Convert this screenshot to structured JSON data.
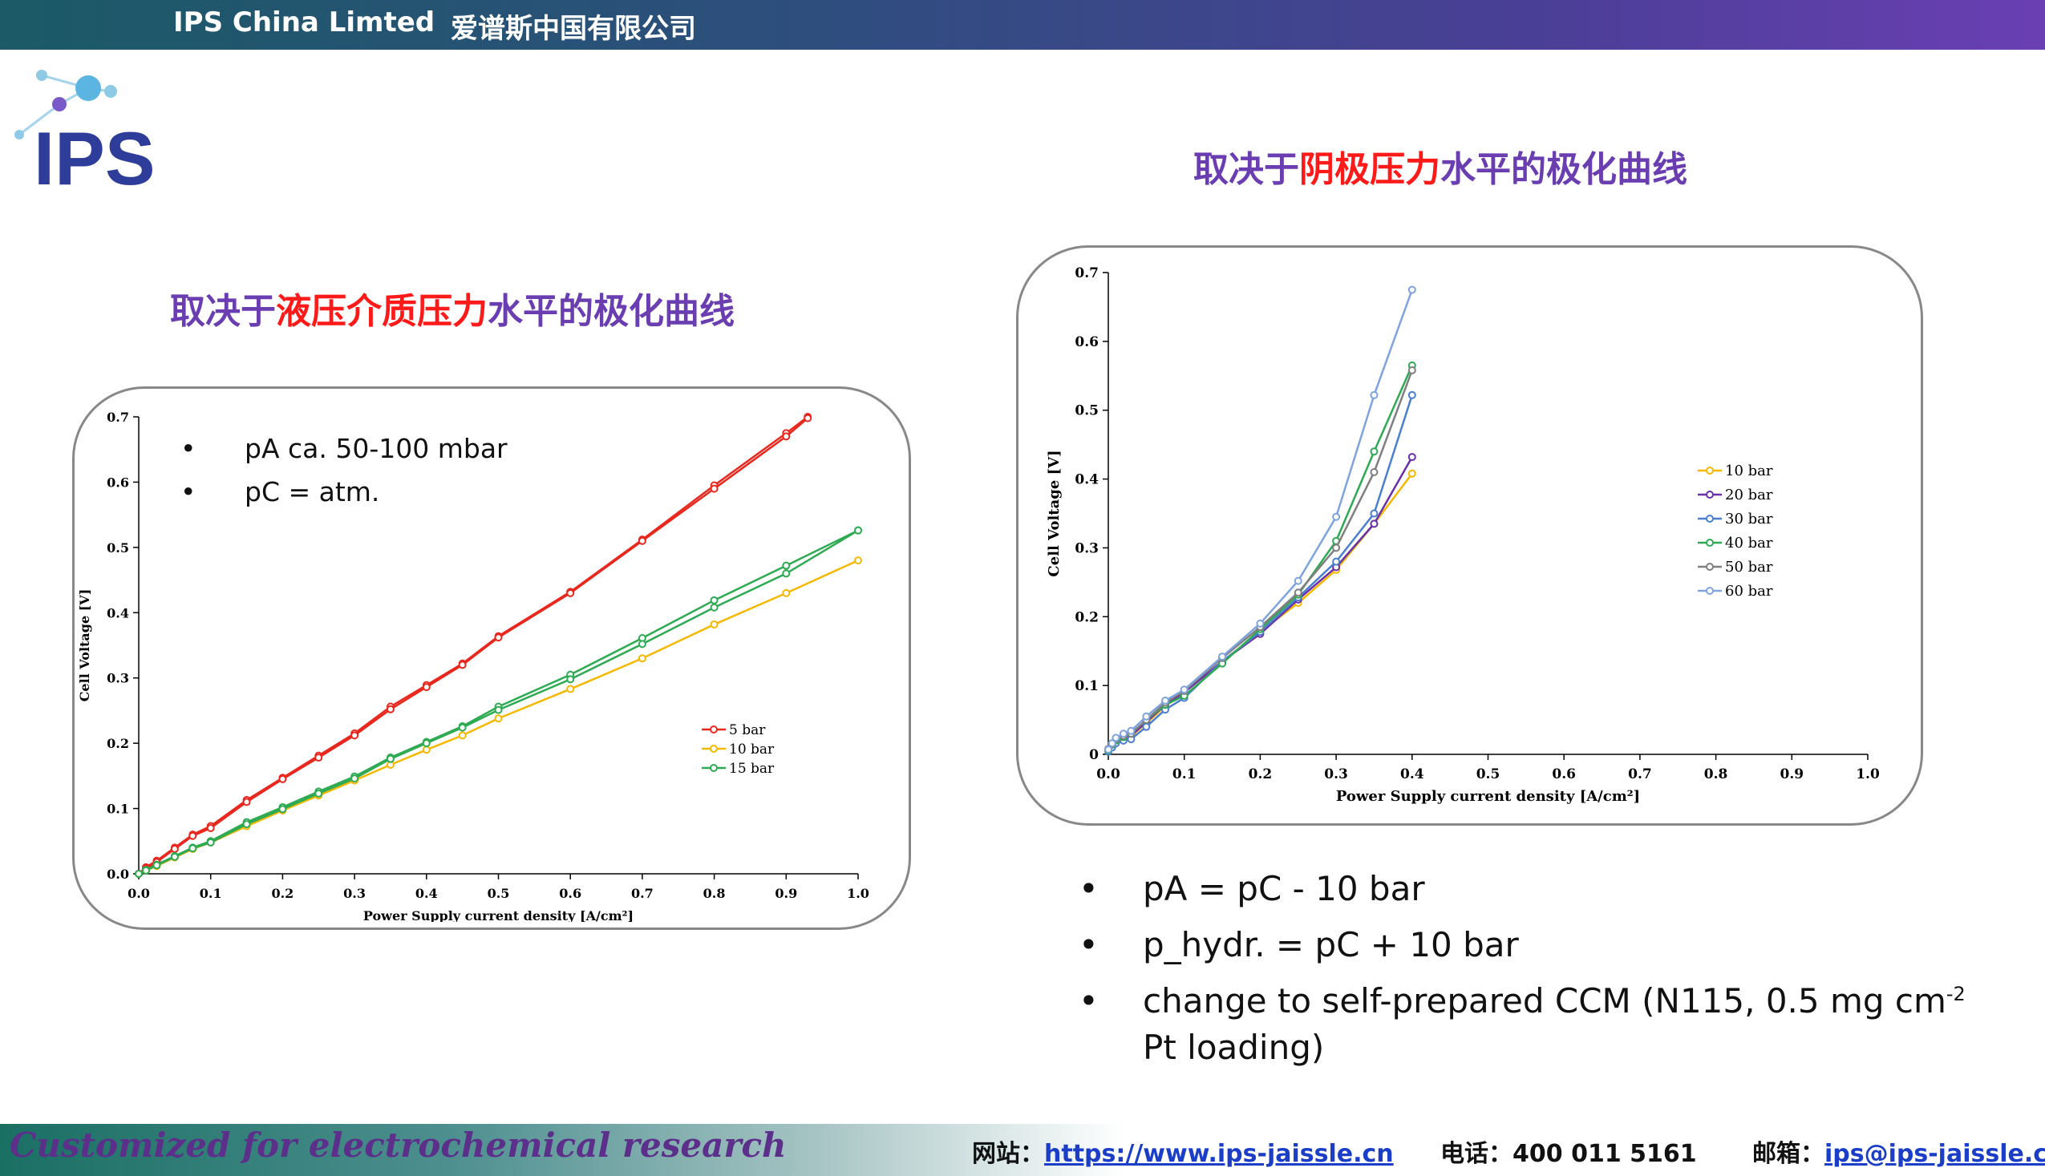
{
  "header": {
    "company_en": "IPS China Limted",
    "company_cn": "爱谱斯中国有限公司"
  },
  "logo": {
    "text": "IPS"
  },
  "left_section": {
    "title_prefix": "取决于",
    "title_highlight": "液压介质压力",
    "title_suffix": "水平的极化曲线"
  },
  "right_section": {
    "title_prefix": "取决于",
    "title_highlight": "阴极压力",
    "title_suffix": "水平的极化曲线"
  },
  "left_bullets": [
    "pA ca. 50-100 mbar",
    "pC = atm."
  ],
  "right_bullets": [
    {
      "text": "pA = pC - 10 bar"
    },
    {
      "text": "p_hydr. = pC + 10 bar"
    },
    {
      "text": "change to self-prepared CCM (N115, 0.5 mg cm",
      "sup": "-2",
      "line2": "Pt loading)"
    }
  ],
  "bullet_symbol": "•",
  "colors": {
    "red": "#e8281e",
    "yellow": "#f5b800",
    "green": "#2eaa52",
    "purple": "#6a2fa8",
    "blue": "#4a7fd0",
    "gray": "#7f7f7f",
    "lightblue": "#7ea3dd",
    "title_purple": "#6a3db0",
    "title_red": "#ff1a1a"
  },
  "chart_data": [
    {
      "type": "line",
      "xlabel": "Power Supply current density [A/cm²]",
      "ylabel": "Cell Voltage [V]",
      "xlim": [
        0,
        1.0
      ],
      "ylim": [
        0,
        0.7
      ],
      "xticks": [
        "0.0",
        "0.1",
        "0.2",
        "0.3",
        "0.4",
        "0.5",
        "0.6",
        "0.7",
        "0.8",
        "0.9",
        "1.0"
      ],
      "yticks": [
        "0.0",
        "0.1",
        "0.2",
        "0.3",
        "0.4",
        "0.5",
        "0.6",
        "0.7"
      ],
      "legend_position": "right-center",
      "series": [
        {
          "name": "5 bar",
          "color": "#e8281e",
          "x": [
            0,
            0.01,
            0.025,
            0.05,
            0.075,
            0.1,
            0.15,
            0.2,
            0.25,
            0.3,
            0.35,
            0.4,
            0.45,
            0.5,
            0.6,
            0.7,
            0.8,
            0.9,
            0.93
          ],
          "y": [
            0,
            0.01,
            0.02,
            0.04,
            0.06,
            0.073,
            0.113,
            0.147,
            0.181,
            0.215,
            0.256,
            0.289,
            0.322,
            0.364,
            0.432,
            0.512,
            0.595,
            0.675,
            0.7
          ]
        },
        {
          "name": "5 bar",
          "color": "#e8281e",
          "x": [
            0,
            0.01,
            0.025,
            0.05,
            0.075,
            0.1,
            0.15,
            0.2,
            0.25,
            0.3,
            0.35,
            0.4,
            0.45,
            0.5,
            0.6,
            0.7,
            0.8,
            0.9,
            0.93
          ],
          "y": [
            0,
            0.008,
            0.018,
            0.038,
            0.058,
            0.07,
            0.11,
            0.145,
            0.178,
            0.212,
            0.252,
            0.286,
            0.32,
            0.362,
            0.43,
            0.51,
            0.59,
            0.67,
            0.698
          ]
        },
        {
          "name": "10 bar",
          "color": "#f5b800",
          "x": [
            0,
            0.01,
            0.025,
            0.05,
            0.075,
            0.1,
            0.15,
            0.2,
            0.25,
            0.3,
            0.35,
            0.4,
            0.45,
            0.5,
            0.6,
            0.7,
            0.8,
            0.9,
            1.0
          ],
          "y": [
            0,
            0.005,
            0.012,
            0.025,
            0.038,
            0.048,
            0.073,
            0.097,
            0.12,
            0.143,
            0.167,
            0.19,
            0.212,
            0.238,
            0.283,
            0.33,
            0.382,
            0.43,
            0.48
          ]
        },
        {
          "name": "15 bar",
          "color": "#2eaa52",
          "x": [
            0,
            0.01,
            0.025,
            0.05,
            0.075,
            0.1,
            0.15,
            0.2,
            0.25,
            0.3,
            0.35,
            0.4,
            0.45,
            0.5,
            0.6,
            0.7,
            0.8,
            0.9,
            1.0
          ],
          "y": [
            0,
            0.006,
            0.014,
            0.027,
            0.04,
            0.05,
            0.079,
            0.102,
            0.126,
            0.149,
            0.178,
            0.202,
            0.226,
            0.256,
            0.305,
            0.361,
            0.419,
            0.472,
            0.526
          ]
        },
        {
          "name": "15 bar",
          "color": "#2eaa52",
          "x": [
            0,
            0.01,
            0.025,
            0.05,
            0.075,
            0.1,
            0.15,
            0.2,
            0.25,
            0.3,
            0.35,
            0.4,
            0.45,
            0.5,
            0.6,
            0.7,
            0.8,
            0.9,
            1.0
          ],
          "y": [
            0,
            0.005,
            0.013,
            0.026,
            0.039,
            0.048,
            0.076,
            0.099,
            0.123,
            0.146,
            0.176,
            0.2,
            0.224,
            0.251,
            0.298,
            0.352,
            0.408,
            0.46,
            0.526
          ]
        }
      ]
    },
    {
      "type": "line",
      "xlabel": "Power Supply current density [A/cm²]",
      "ylabel": "Cell Voltage [V]",
      "xlim": [
        0,
        1.0
      ],
      "ylim": [
        0,
        0.7
      ],
      "xticks": [
        "0.0",
        "0.1",
        "0.2",
        "0.3",
        "0.4",
        "0.5",
        "0.6",
        "0.7",
        "0.8",
        "0.9",
        "1.0"
      ],
      "yticks": [
        "0",
        "0.1",
        "0.2",
        "0.3",
        "0.4",
        "0.5",
        "0.6",
        "0.7"
      ],
      "legend_position": "right-center",
      "series": [
        {
          "name": "10 bar",
          "color": "#f5b800",
          "x": [
            0,
            0.005,
            0.01,
            0.02,
            0.03,
            0.05,
            0.075,
            0.1,
            0.15,
            0.2,
            0.25,
            0.3,
            0.35,
            0.4
          ],
          "y": [
            0.005,
            0.012,
            0.018,
            0.022,
            0.026,
            0.045,
            0.07,
            0.09,
            0.135,
            0.178,
            0.22,
            0.268,
            0.335,
            0.408
          ]
        },
        {
          "name": "20 bar",
          "color": "#6a2fa8",
          "x": [
            0,
            0.005,
            0.01,
            0.02,
            0.03,
            0.05,
            0.075,
            0.1,
            0.15,
            0.2,
            0.25,
            0.3,
            0.35,
            0.4
          ],
          "y": [
            0.006,
            0.013,
            0.019,
            0.023,
            0.027,
            0.047,
            0.072,
            0.09,
            0.135,
            0.175,
            0.225,
            0.272,
            0.335,
            0.432
          ]
        },
        {
          "name": "30 bar",
          "color": "#4a7fd0",
          "x": [
            0,
            0.005,
            0.01,
            0.02,
            0.03,
            0.05,
            0.075,
            0.1,
            0.15,
            0.2,
            0.25,
            0.3,
            0.35,
            0.4
          ],
          "y": [
            0.004,
            0.01,
            0.016,
            0.02,
            0.022,
            0.04,
            0.065,
            0.082,
            0.135,
            0.178,
            0.228,
            0.28,
            0.35,
            0.522
          ]
        },
        {
          "name": "40 bar",
          "color": "#2eaa52",
          "x": [
            0,
            0.005,
            0.01,
            0.02,
            0.03,
            0.05,
            0.075,
            0.1,
            0.15,
            0.2,
            0.25,
            0.3,
            0.35,
            0.4
          ],
          "y": [
            0.006,
            0.014,
            0.02,
            0.025,
            0.03,
            0.05,
            0.072,
            0.085,
            0.132,
            0.182,
            0.232,
            0.31,
            0.44,
            0.565
          ]
        },
        {
          "name": "50 bar",
          "color": "#7f7f7f",
          "x": [
            0,
            0.005,
            0.01,
            0.02,
            0.03,
            0.05,
            0.075,
            0.1,
            0.15,
            0.2,
            0.25,
            0.3,
            0.35,
            0.4
          ],
          "y": [
            0.008,
            0.015,
            0.022,
            0.027,
            0.03,
            0.05,
            0.075,
            0.092,
            0.14,
            0.185,
            0.235,
            0.3,
            0.41,
            0.558
          ]
        },
        {
          "name": "60 bar",
          "color": "#7ea3dd",
          "x": [
            0,
            0.005,
            0.01,
            0.02,
            0.03,
            0.05,
            0.075,
            0.1,
            0.15,
            0.2,
            0.25,
            0.3,
            0.35,
            0.4
          ],
          "y": [
            0.007,
            0.016,
            0.024,
            0.03,
            0.034,
            0.055,
            0.078,
            0.094,
            0.142,
            0.19,
            0.252,
            0.345,
            0.522,
            0.675
          ]
        }
      ]
    }
  ],
  "footer": {
    "slogan": "Customized for electrochemical research",
    "website_label": "网站：",
    "website_url": "https://www.ips-jaissle.cn",
    "phone_label": "电话：",
    "phone": "400 011 5161",
    "email_label": "邮箱：",
    "email": "ips@ips-jaissle.cn"
  }
}
